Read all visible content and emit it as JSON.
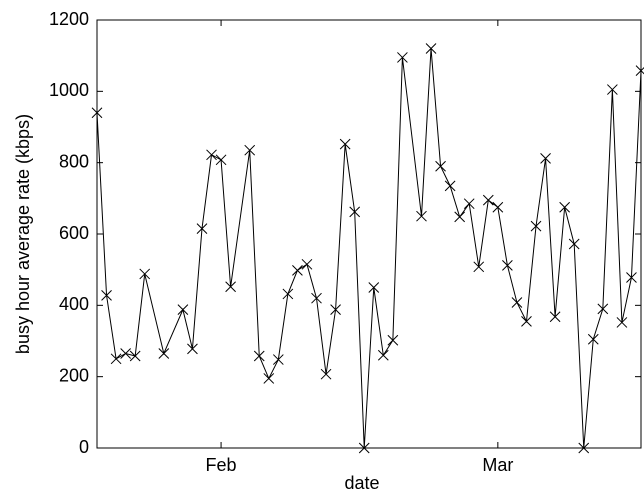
{
  "chart_data": {
    "type": "line",
    "x_label": "date",
    "y_label": "busy hour average rate (kbps)",
    "x": [
      0,
      1,
      2,
      3,
      4,
      5,
      7,
      9,
      10,
      11,
      12,
      13,
      14,
      16,
      17,
      18,
      19,
      20,
      21,
      22,
      23,
      24,
      25,
      26,
      27,
      28,
      29,
      30,
      31,
      32,
      34,
      35,
      36,
      37,
      38,
      39,
      40,
      41,
      42,
      43,
      44,
      45,
      46,
      47,
      48,
      49,
      50,
      51,
      52,
      53,
      54,
      55,
      56,
      57
    ],
    "series": [
      {
        "color": "#000000",
        "marker": "x",
        "values": [
          940,
          428,
          250,
          265,
          258,
          488,
          265,
          388,
          278,
          615,
          822,
          808,
          452,
          835,
          258,
          195,
          248,
          432,
          498,
          515,
          420,
          207,
          388,
          852,
          662,
          0,
          450,
          260,
          302,
          1095,
          650,
          1120,
          790,
          735,
          648,
          685,
          508,
          695,
          675,
          512,
          408,
          355,
          622,
          812,
          368,
          675,
          572,
          0,
          305,
          390,
          1005,
          352,
          478,
          1058
        ]
      }
    ],
    "xlim": [
      0,
      57
    ],
    "xticks": [
      {
        "value": 13,
        "label": "Feb"
      },
      {
        "value": 42,
        "label": "Mar"
      }
    ],
    "ylim": [
      0,
      1200
    ],
    "yticks": [
      0,
      200,
      400,
      600,
      800,
      1000,
      1200
    ],
    "grid": false
  }
}
